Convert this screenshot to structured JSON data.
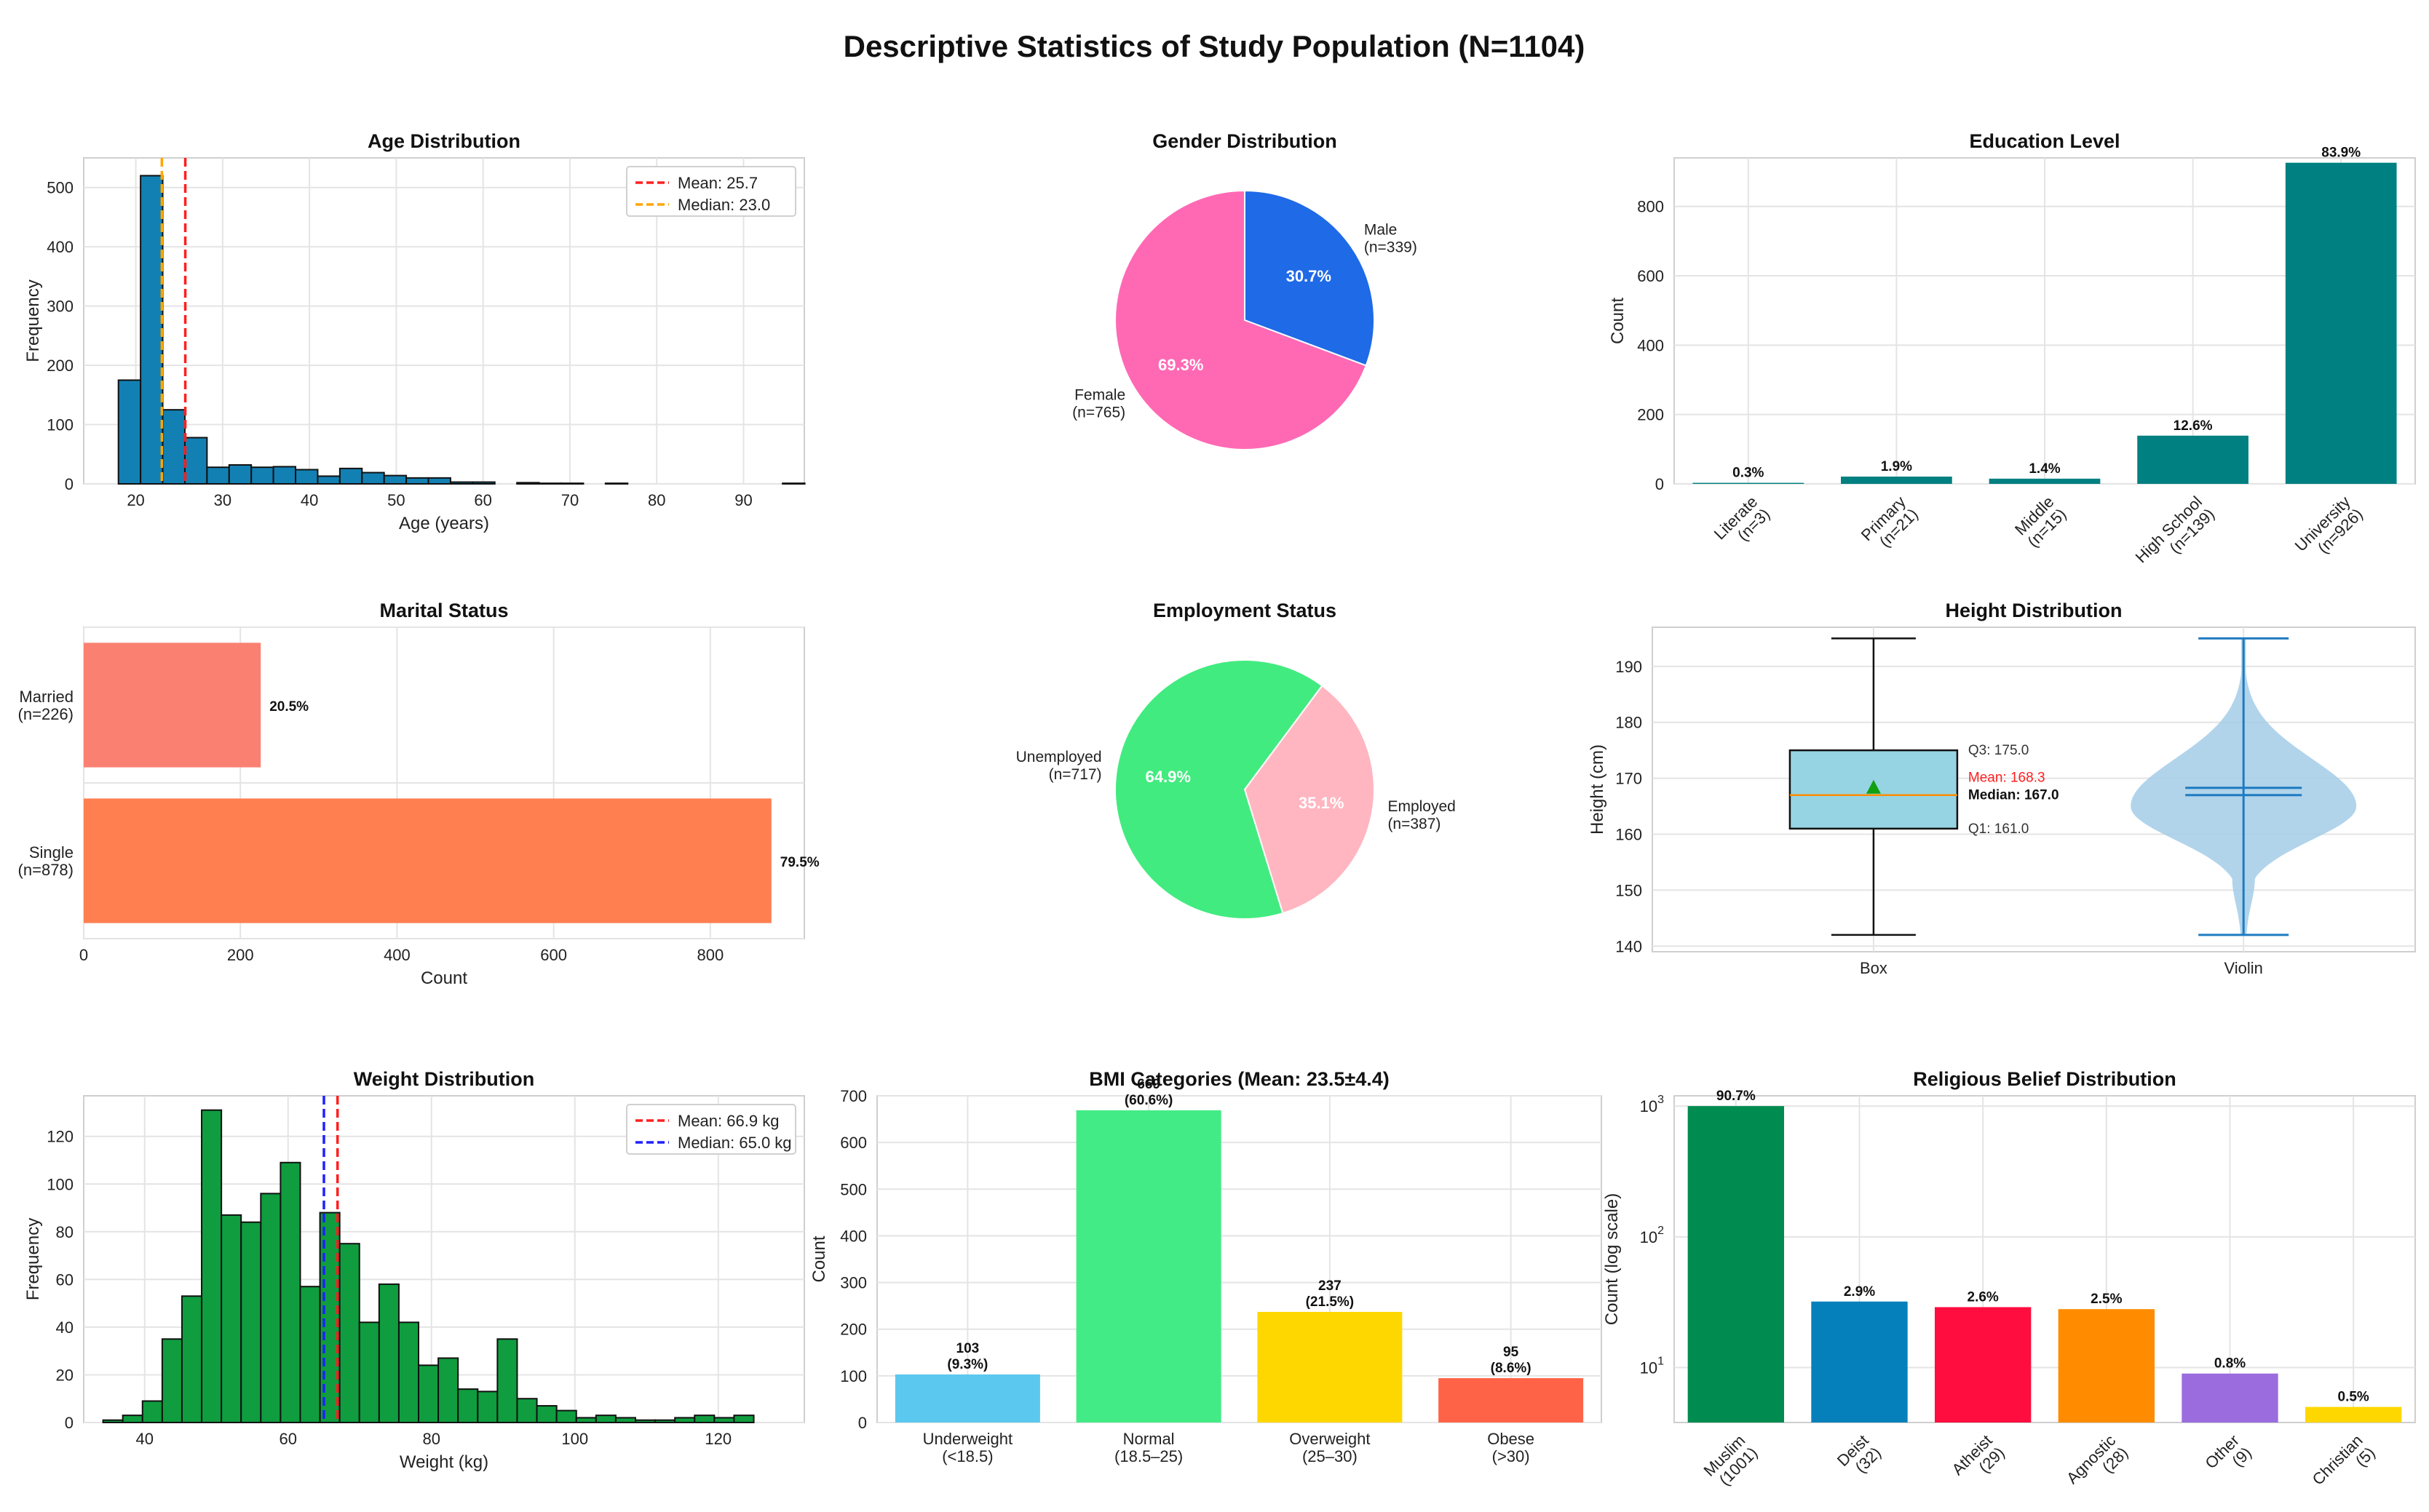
{
  "suptitle": "Descriptive Statistics of Study Population (N=1104)",
  "chart_data": [
    {
      "id": "age",
      "type": "bar",
      "subtype": "histogram",
      "title": "Age Distribution",
      "xlabel": "Age (years)",
      "ylabel": "Frequency",
      "xlim": [
        14,
        97
      ],
      "ylim": [
        0,
        550
      ],
      "xticks": [
        20,
        30,
        40,
        50,
        60,
        70,
        80,
        90
      ],
      "yticks": [
        0,
        100,
        200,
        300,
        400,
        500
      ],
      "bins": {
        "start": 18,
        "width": 2.55
      },
      "values": [
        175,
        520,
        125,
        78,
        28,
        32,
        28,
        29,
        24,
        13,
        26,
        19,
        14,
        10,
        10,
        3,
        3,
        0,
        2,
        1,
        1,
        0,
        1,
        0,
        0,
        0,
        0,
        0,
        0,
        0,
        1
      ],
      "color": "#1380b3",
      "vlines": [
        {
          "label": "Mean: 25.7",
          "x": 25.7,
          "color": "#ff1f1f"
        },
        {
          "label": "Median: 23.0",
          "x": 23.0,
          "color": "#ffa500"
        }
      ],
      "legend": "top-right"
    },
    {
      "id": "gender",
      "type": "pie",
      "title": "Gender Distribution",
      "slices": [
        {
          "name": "Male",
          "count": "(n=339)",
          "value": 339,
          "pct": "30.7%",
          "color": "#1f6ae6"
        },
        {
          "name": "Female",
          "count": "(n=765)",
          "value": 765,
          "pct": "69.3%",
          "color": "#ff69b4"
        }
      ]
    },
    {
      "id": "education",
      "type": "bar",
      "title": "Education Level",
      "ylabel": "Count",
      "ylim": [
        0,
        940
      ],
      "yticks": [
        0,
        200,
        400,
        600,
        800
      ],
      "categories": [
        "Literate\n(n=3)",
        "Primary\n(n=21)",
        "Middle\n(n=15)",
        "High School\n(n=139)",
        "University\n(n=926)"
      ],
      "values": [
        3,
        21,
        15,
        139,
        926
      ],
      "labels": [
        "0.3%",
        "1.9%",
        "1.4%",
        "12.6%",
        "83.9%"
      ],
      "color": "#008080"
    },
    {
      "id": "marital",
      "type": "bar",
      "subtype": "horizontal",
      "title": "Marital Status",
      "xlabel": "Count",
      "xlim": [
        0,
        920
      ],
      "xticks": [
        0,
        200,
        400,
        600,
        800
      ],
      "categories": [
        "Married\n(n=226)",
        "Single\n(n=878)"
      ],
      "values": [
        226,
        878
      ],
      "labels": [
        "20.5%",
        "79.5%"
      ],
      "colors": [
        "#fa8072",
        "#ff7f50"
      ]
    },
    {
      "id": "employment",
      "type": "pie",
      "title": "Employment Status",
      "slices": [
        {
          "name": "Employed",
          "count": "(n=387)",
          "value": 387,
          "pct": "35.1%",
          "color": "#ffb6c1"
        },
        {
          "name": "Unemployed",
          "count": "(n=717)",
          "value": 717,
          "pct": "64.9%",
          "color": "#42eb7f"
        }
      ]
    },
    {
      "id": "height",
      "type": "box",
      "title": "Height Distribution",
      "ylabel": "Height (cm)",
      "ylim": [
        139,
        197
      ],
      "yticks": [
        140,
        150,
        160,
        170,
        180,
        190
      ],
      "categories": [
        "Box",
        "Violin"
      ],
      "stats": {
        "min": 142,
        "q1": 161,
        "median": 167,
        "mean": 168.3,
        "q3": 175,
        "max": 195
      },
      "labels": {
        "q3": "Q3: 175.0",
        "mean": "Mean: 168.3",
        "median": "Median: 167.0",
        "q1": "Q1: 161.0"
      },
      "colors": {
        "box": "#96d4e3",
        "mean": "#11a011",
        "violin": "#a3cce7",
        "violin_line": "#1f7bc1"
      }
    },
    {
      "id": "weight",
      "type": "bar",
      "subtype": "histogram",
      "title": "Weight Distribution",
      "xlabel": "Weight (kg)",
      "ylabel": "Frequency",
      "xlim": [
        31.5,
        132
      ],
      "ylim": [
        0,
        137
      ],
      "xticks": [
        40,
        60,
        80,
        100,
        120
      ],
      "yticks": [
        0,
        20,
        40,
        60,
        80,
        100,
        120
      ],
      "bins": {
        "start": 34.2,
        "width": 2.75
      },
      "values": [
        1,
        3,
        9,
        35,
        53,
        131,
        87,
        84,
        96,
        109,
        57,
        88,
        75,
        42,
        58,
        42,
        24,
        27,
        14,
        13,
        35,
        10,
        7,
        5,
        2,
        3,
        2,
        1,
        1,
        2,
        3,
        2,
        3
      ],
      "color": "#0f9d3f",
      "vlines": [
        {
          "label": "Mean: 66.9 kg",
          "x": 66.9,
          "color": "#ff1f1f"
        },
        {
          "label": "Median: 65.0 kg",
          "x": 65.0,
          "color": "#1f1fff"
        }
      ],
      "legend": "top-right"
    },
    {
      "id": "bmi",
      "type": "bar",
      "title": "BMI Categories (Mean: 23.5±4.4)",
      "ylabel": "Count",
      "ylim": [
        0,
        700
      ],
      "yticks": [
        0,
        100,
        200,
        300,
        400,
        500,
        600,
        700
      ],
      "categories": [
        "Underweight\n(<18.5)",
        "Normal\n(18.5–25)",
        "Overweight\n(25–30)",
        "Obese\n(>30)"
      ],
      "values": [
        103,
        669,
        237,
        95
      ],
      "labels": [
        "103\n(9.3%)",
        "669\n(60.6%)",
        "237\n(21.5%)",
        "95\n(8.6%)"
      ],
      "colors": [
        "#5bc8ef",
        "#42eb85",
        "#ffd700",
        "#ff6347"
      ]
    },
    {
      "id": "religion",
      "type": "bar",
      "scale": "log",
      "title": "Religious Belief Distribution",
      "ylabel": "Count (log scale)",
      "ylim": [
        3.8,
        1200
      ],
      "yticks": [
        {
          "base": "10",
          "exp": "1",
          "value": 10
        },
        {
          "base": "10",
          "exp": "2",
          "value": 100
        },
        {
          "base": "10",
          "exp": "3",
          "value": 1000
        }
      ],
      "categories": [
        "Muslim\n(1001)",
        "Deist\n(32)",
        "Atheist\n(29)",
        "Agnostic\n(28)",
        "Other\n(9)",
        "Christian\n(5)"
      ],
      "values": [
        1001,
        32,
        29,
        28,
        9,
        5
      ],
      "labels": [
        "90.7%",
        "2.9%",
        "2.6%",
        "2.5%",
        "0.8%",
        "0.5%"
      ],
      "colors": [
        "#008c50",
        "#0580bb",
        "#ff0d3f",
        "#ff8c00",
        "#9b6cde",
        "#ffd700"
      ]
    }
  ]
}
